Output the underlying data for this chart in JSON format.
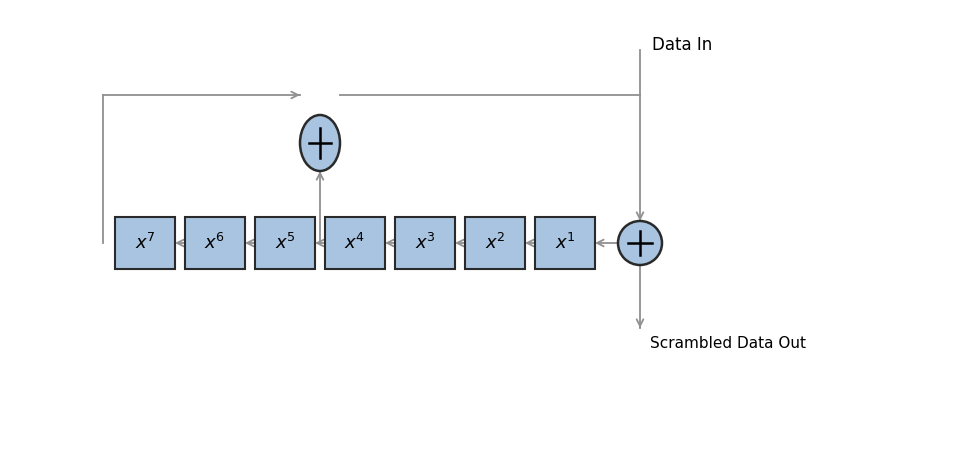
{
  "box_color": "#a8c4e0",
  "box_edge_color": "#2a2a2a",
  "xor_color": "#a8c4e0",
  "xor_edge_color": "#2a2a2a",
  "line_color": "#909090",
  "arrow_color": "#909090",
  "text_color": "#000000",
  "box_labels": [
    [
      "x",
      "7"
    ],
    [
      "x",
      "6"
    ],
    [
      "x",
      "5"
    ],
    [
      "x",
      "4"
    ],
    [
      "x",
      "3"
    ],
    [
      "x",
      "2"
    ],
    [
      "x",
      "1"
    ]
  ],
  "label_data_in": "Data In",
  "label_data_out": "Scrambled Data Out",
  "background_color": "#ffffff",
  "fig_width": 9.6,
  "fig_height": 4.68,
  "dpi": 100
}
